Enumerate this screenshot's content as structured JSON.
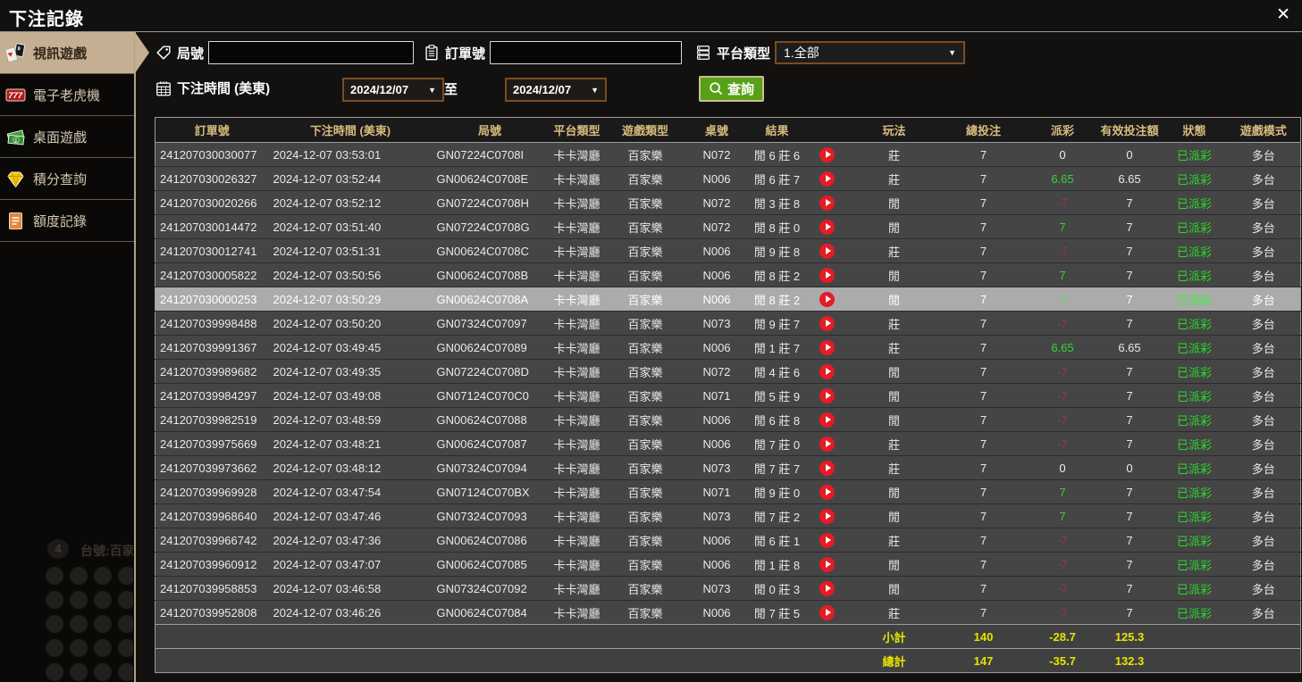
{
  "window": {
    "title": "下注記錄",
    "close_glyph": "✕"
  },
  "sidebar": {
    "items": [
      {
        "label": "視訊遊戲",
        "icon": "cards-icon",
        "active": true
      },
      {
        "label": "電子老虎機",
        "icon": "slots-icon",
        "active": false
      },
      {
        "label": "桌面遊戲",
        "icon": "money-icon",
        "active": false
      },
      {
        "label": "積分查詢",
        "icon": "diamond-icon",
        "active": false
      },
      {
        "label": "額度記錄",
        "icon": "document-icon",
        "active": false
      }
    ]
  },
  "filters": {
    "round_label": "局號",
    "round_value": "",
    "order_label": "訂單號",
    "order_value": "",
    "platform_label": "平台類型",
    "platform_value": "1.全部",
    "time_label": "下注時間 (美東)",
    "date_from": "2024/12/07",
    "to_label": "至",
    "date_to": "2024/12/07",
    "search_label": "查詢",
    "caret": "▼"
  },
  "watermark": {
    "badge": "4",
    "table_label": "台號:百家"
  },
  "table": {
    "columns": [
      "訂單號",
      "下注時間 (美東)",
      "局號",
      "平台類型",
      "遊戲類型",
      "桌號",
      "結果",
      "",
      "玩法",
      "總投注",
      "派彩",
      "有效投注額",
      "狀態",
      "遊戲模式"
    ],
    "rows": [
      {
        "order_no": "241207030030077",
        "bet_time": "2024-12-07 03:53:01",
        "round_no": "GN07224C0708I",
        "platform": "卡卡灣廳",
        "game_type": "百家樂",
        "table_no": "N072",
        "result": "閒 6 莊 6",
        "play": "莊",
        "total_bet": "7",
        "payout": "0",
        "valid_bet": "0",
        "status": "已派彩",
        "mode": "多台",
        "highlighted": false
      },
      {
        "order_no": "241207030026327",
        "bet_time": "2024-12-07 03:52:44",
        "round_no": "GN00624C0708E",
        "platform": "卡卡灣廳",
        "game_type": "百家樂",
        "table_no": "N006",
        "result": "閒 6 莊 7",
        "play": "莊",
        "total_bet": "7",
        "payout": "6.65",
        "valid_bet": "6.65",
        "status": "已派彩",
        "mode": "多台",
        "highlighted": false
      },
      {
        "order_no": "241207030020266",
        "bet_time": "2024-12-07 03:52:12",
        "round_no": "GN07224C0708H",
        "platform": "卡卡灣廳",
        "game_type": "百家樂",
        "table_no": "N072",
        "result": "閒 3 莊 8",
        "play": "閒",
        "total_bet": "7",
        "payout": "-7",
        "valid_bet": "7",
        "status": "已派彩",
        "mode": "多台",
        "highlighted": false
      },
      {
        "order_no": "241207030014472",
        "bet_time": "2024-12-07 03:51:40",
        "round_no": "GN07224C0708G",
        "platform": "卡卡灣廳",
        "game_type": "百家樂",
        "table_no": "N072",
        "result": "閒 8 莊 0",
        "play": "閒",
        "total_bet": "7",
        "payout": "7",
        "valid_bet": "7",
        "status": "已派彩",
        "mode": "多台",
        "highlighted": false
      },
      {
        "order_no": "241207030012741",
        "bet_time": "2024-12-07 03:51:31",
        "round_no": "GN00624C0708C",
        "platform": "卡卡灣廳",
        "game_type": "百家樂",
        "table_no": "N006",
        "result": "閒 9 莊 8",
        "play": "莊",
        "total_bet": "7",
        "payout": "-7",
        "valid_bet": "7",
        "status": "已派彩",
        "mode": "多台",
        "highlighted": false
      },
      {
        "order_no": "241207030005822",
        "bet_time": "2024-12-07 03:50:56",
        "round_no": "GN00624C0708B",
        "platform": "卡卡灣廳",
        "game_type": "百家樂",
        "table_no": "N006",
        "result": "閒 8 莊 2",
        "play": "閒",
        "total_bet": "7",
        "payout": "7",
        "valid_bet": "7",
        "status": "已派彩",
        "mode": "多台",
        "highlighted": false
      },
      {
        "order_no": "241207030000253",
        "bet_time": "2024-12-07 03:50:29",
        "round_no": "GN00624C0708A",
        "platform": "卡卡灣廳",
        "game_type": "百家樂",
        "table_no": "N006",
        "result": "閒 8 莊 2",
        "play": "閒",
        "total_bet": "7",
        "payout": "7",
        "valid_bet": "7",
        "status": "已派彩",
        "mode": "多台",
        "highlighted": true
      },
      {
        "order_no": "241207039998488",
        "bet_time": "2024-12-07 03:50:20",
        "round_no": "GN07324C07097",
        "platform": "卡卡灣廳",
        "game_type": "百家樂",
        "table_no": "N073",
        "result": "閒 9 莊 7",
        "play": "莊",
        "total_bet": "7",
        "payout": "-7",
        "valid_bet": "7",
        "status": "已派彩",
        "mode": "多台",
        "highlighted": false
      },
      {
        "order_no": "241207039991367",
        "bet_time": "2024-12-07 03:49:45",
        "round_no": "GN00624C07089",
        "platform": "卡卡灣廳",
        "game_type": "百家樂",
        "table_no": "N006",
        "result": "閒 1 莊 7",
        "play": "莊",
        "total_bet": "7",
        "payout": "6.65",
        "valid_bet": "6.65",
        "status": "已派彩",
        "mode": "多台",
        "highlighted": false
      },
      {
        "order_no": "241207039989682",
        "bet_time": "2024-12-07 03:49:35",
        "round_no": "GN07224C0708D",
        "platform": "卡卡灣廳",
        "game_type": "百家樂",
        "table_no": "N072",
        "result": "閒 4 莊 6",
        "play": "閒",
        "total_bet": "7",
        "payout": "-7",
        "valid_bet": "7",
        "status": "已派彩",
        "mode": "多台",
        "highlighted": false
      },
      {
        "order_no": "241207039984297",
        "bet_time": "2024-12-07 03:49:08",
        "round_no": "GN07124C070C0",
        "platform": "卡卡灣廳",
        "game_type": "百家樂",
        "table_no": "N071",
        "result": "閒 5 莊 9",
        "play": "閒",
        "total_bet": "7",
        "payout": "-7",
        "valid_bet": "7",
        "status": "已派彩",
        "mode": "多台",
        "highlighted": false
      },
      {
        "order_no": "241207039982519",
        "bet_time": "2024-12-07 03:48:59",
        "round_no": "GN00624C07088",
        "platform": "卡卡灣廳",
        "game_type": "百家樂",
        "table_no": "N006",
        "result": "閒 6 莊 8",
        "play": "閒",
        "total_bet": "7",
        "payout": "-7",
        "valid_bet": "7",
        "status": "已派彩",
        "mode": "多台",
        "highlighted": false
      },
      {
        "order_no": "241207039975669",
        "bet_time": "2024-12-07 03:48:21",
        "round_no": "GN00624C07087",
        "platform": "卡卡灣廳",
        "game_type": "百家樂",
        "table_no": "N006",
        "result": "閒 7 莊 0",
        "play": "莊",
        "total_bet": "7",
        "payout": "-7",
        "valid_bet": "7",
        "status": "已派彩",
        "mode": "多台",
        "highlighted": false
      },
      {
        "order_no": "241207039973662",
        "bet_time": "2024-12-07 03:48:12",
        "round_no": "GN07324C07094",
        "platform": "卡卡灣廳",
        "game_type": "百家樂",
        "table_no": "N073",
        "result": "閒 7 莊 7",
        "play": "莊",
        "total_bet": "7",
        "payout": "0",
        "valid_bet": "0",
        "status": "已派彩",
        "mode": "多台",
        "highlighted": false
      },
      {
        "order_no": "241207039969928",
        "bet_time": "2024-12-07 03:47:54",
        "round_no": "GN07124C070BX",
        "platform": "卡卡灣廳",
        "game_type": "百家樂",
        "table_no": "N071",
        "result": "閒 9 莊 0",
        "play": "閒",
        "total_bet": "7",
        "payout": "7",
        "valid_bet": "7",
        "status": "已派彩",
        "mode": "多台",
        "highlighted": false
      },
      {
        "order_no": "241207039968640",
        "bet_time": "2024-12-07 03:47:46",
        "round_no": "GN07324C07093",
        "platform": "卡卡灣廳",
        "game_type": "百家樂",
        "table_no": "N073",
        "result": "閒 7 莊 2",
        "play": "閒",
        "total_bet": "7",
        "payout": "7",
        "valid_bet": "7",
        "status": "已派彩",
        "mode": "多台",
        "highlighted": false
      },
      {
        "order_no": "241207039966742",
        "bet_time": "2024-12-07 03:47:36",
        "round_no": "GN00624C07086",
        "platform": "卡卡灣廳",
        "game_type": "百家樂",
        "table_no": "N006",
        "result": "閒 6 莊 1",
        "play": "莊",
        "total_bet": "7",
        "payout": "-7",
        "valid_bet": "7",
        "status": "已派彩",
        "mode": "多台",
        "highlighted": false
      },
      {
        "order_no": "241207039960912",
        "bet_time": "2024-12-07 03:47:07",
        "round_no": "GN00624C07085",
        "platform": "卡卡灣廳",
        "game_type": "百家樂",
        "table_no": "N006",
        "result": "閒 1 莊 8",
        "play": "閒",
        "total_bet": "7",
        "payout": "-7",
        "valid_bet": "7",
        "status": "已派彩",
        "mode": "多台",
        "highlighted": false
      },
      {
        "order_no": "241207039958853",
        "bet_time": "2024-12-07 03:46:58",
        "round_no": "GN07324C07092",
        "platform": "卡卡灣廳",
        "game_type": "百家樂",
        "table_no": "N073",
        "result": "閒 0 莊 3",
        "play": "閒",
        "total_bet": "7",
        "payout": "-7",
        "valid_bet": "7",
        "status": "已派彩",
        "mode": "多台",
        "highlighted": false
      },
      {
        "order_no": "241207039952808",
        "bet_time": "2024-12-07 03:46:26",
        "round_no": "GN00624C07084",
        "platform": "卡卡灣廳",
        "game_type": "百家樂",
        "table_no": "N006",
        "result": "閒 7 莊 5",
        "play": "莊",
        "total_bet": "7",
        "payout": "-7",
        "valid_bet": "7",
        "status": "已派彩",
        "mode": "多台",
        "highlighted": false
      }
    ],
    "subtotal": {
      "label": "小計",
      "total_bet": "140",
      "payout": "-28.7",
      "valid_bet": "125.3"
    },
    "total": {
      "label": "總計",
      "total_bet": "147",
      "payout": "-35.7",
      "valid_bet": "132.3"
    }
  },
  "colors": {
    "accent_tan": "#c4af92",
    "header_gold": "#d8bc7e",
    "button_green": "#58a018",
    "payout_positive": "#35d435",
    "payout_negative": "#9e3440",
    "status_green": "#2ad82a",
    "totals_yellow": "#e8e400",
    "row_highlight": "#ababab",
    "date_border_brown": "#7a4b22"
  }
}
